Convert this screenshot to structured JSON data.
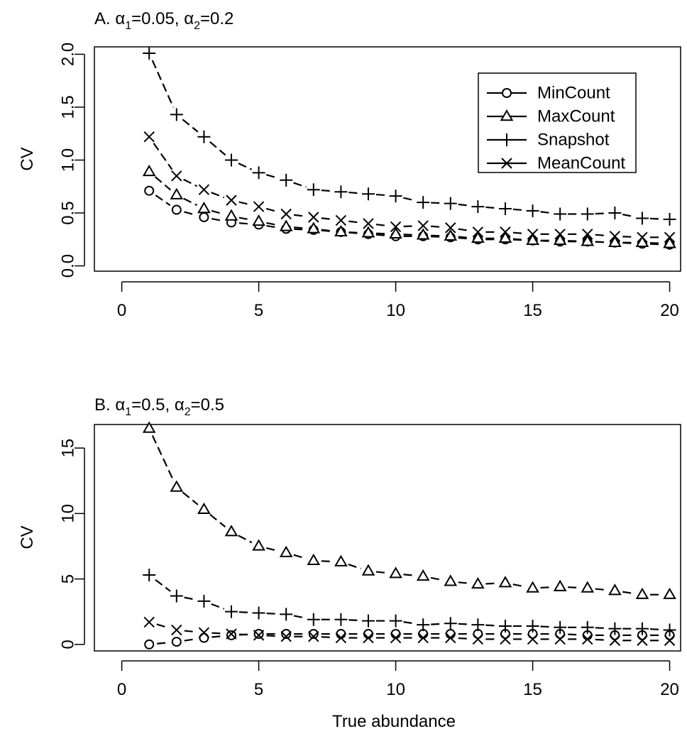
{
  "chart_data": [
    {
      "type": "line",
      "title": "A. α1=0.05, α2=0.2",
      "title_parts": {
        "prefix": "A. ",
        "a1_sym": "α",
        "a1_sub": "1",
        "a1_val": "=0.05, ",
        "a2_sym": "α",
        "a2_sub": "2",
        "a2_val": "=0.2"
      },
      "xlabel": "",
      "ylabel": "CV",
      "xlim": [
        -1,
        20.4
      ],
      "ylim": [
        -0.05,
        2.07
      ],
      "xticks": [
        0,
        5,
        10,
        15,
        20
      ],
      "xtick_labels": [
        "0",
        "5",
        "10",
        "15",
        "20"
      ],
      "yticks": [
        0,
        0.5,
        1,
        1.5,
        2
      ],
      "ytick_labels": [
        "0.0",
        "0.5",
        "1.0",
        "1.5",
        "2.0"
      ],
      "grid": false,
      "legend_position": "top-right",
      "x": [
        1,
        2,
        3,
        4,
        5,
        6,
        7,
        8,
        9,
        10,
        11,
        12,
        13,
        14,
        15,
        16,
        17,
        18,
        19,
        20
      ],
      "series": [
        {
          "name": "MinCount",
          "marker": "circle",
          "values": [
            0.71,
            0.53,
            0.46,
            0.41,
            0.39,
            0.35,
            0.34,
            0.32,
            0.3,
            0.28,
            0.28,
            0.27,
            0.25,
            0.25,
            0.24,
            0.23,
            0.23,
            0.22,
            0.21,
            0.2
          ]
        },
        {
          "name": "MaxCount",
          "marker": "triangle",
          "values": [
            0.89,
            0.67,
            0.54,
            0.47,
            0.42,
            0.37,
            0.35,
            0.32,
            0.31,
            0.3,
            0.29,
            0.28,
            0.26,
            0.26,
            0.24,
            0.24,
            0.23,
            0.22,
            0.22,
            0.21
          ]
        },
        {
          "name": "Snapshot",
          "marker": "plus",
          "values": [
            2.01,
            1.43,
            1.22,
            1.0,
            0.88,
            0.81,
            0.72,
            0.7,
            0.68,
            0.66,
            0.6,
            0.59,
            0.56,
            0.54,
            0.52,
            0.49,
            0.49,
            0.5,
            0.45,
            0.44
          ]
        },
        {
          "name": "MeanCount",
          "marker": "cross",
          "values": [
            1.22,
            0.85,
            0.72,
            0.62,
            0.56,
            0.49,
            0.46,
            0.43,
            0.4,
            0.37,
            0.38,
            0.36,
            0.32,
            0.32,
            0.3,
            0.3,
            0.3,
            0.28,
            0.27,
            0.27
          ]
        }
      ]
    },
    {
      "type": "line",
      "title": "B. α1=0.5, α2=0.5",
      "title_parts": {
        "prefix": "B. ",
        "a1_sym": "α",
        "a1_sub": "1",
        "a1_val": "=0.5, ",
        "a2_sym": "α",
        "a2_sub": "2",
        "a2_val": "=0.5"
      },
      "xlabel": "True abundance",
      "ylabel": "CV",
      "xlim": [
        -1,
        20.4
      ],
      "ylim": [
        -0.5,
        16.8
      ],
      "xticks": [
        0,
        5,
        10,
        15,
        20
      ],
      "xtick_labels": [
        "0",
        "5",
        "10",
        "15",
        "20"
      ],
      "yticks": [
        0,
        5,
        10,
        15
      ],
      "ytick_labels": [
        "0",
        "5",
        "10",
        "15"
      ],
      "grid": false,
      "x": [
        1,
        2,
        3,
        4,
        5,
        6,
        7,
        8,
        9,
        10,
        11,
        12,
        13,
        14,
        15,
        16,
        17,
        18,
        19,
        20
      ],
      "series": [
        {
          "name": "MinCount",
          "marker": "circle",
          "values": [
            0.0,
            0.2,
            0.5,
            0.7,
            0.8,
            0.8,
            0.8,
            0.8,
            0.8,
            0.8,
            0.8,
            0.8,
            0.8,
            0.8,
            0.8,
            0.8,
            0.7,
            0.7,
            0.7,
            0.7
          ]
        },
        {
          "name": "MaxCount",
          "marker": "triangle",
          "values": [
            16.5,
            12.0,
            10.3,
            8.6,
            7.5,
            7.0,
            6.4,
            6.3,
            5.6,
            5.4,
            5.2,
            4.8,
            4.6,
            4.7,
            4.3,
            4.4,
            4.3,
            4.1,
            3.8,
            3.8
          ]
        },
        {
          "name": "Snapshot",
          "marker": "plus",
          "values": [
            5.3,
            3.7,
            3.3,
            2.5,
            2.4,
            2.3,
            1.9,
            1.9,
            1.8,
            1.8,
            1.5,
            1.6,
            1.5,
            1.4,
            1.4,
            1.3,
            1.3,
            1.2,
            1.2,
            1.1
          ]
        },
        {
          "name": "MeanCount",
          "marker": "cross",
          "values": [
            1.7,
            1.1,
            0.9,
            0.8,
            0.7,
            0.6,
            0.6,
            0.5,
            0.5,
            0.5,
            0.5,
            0.5,
            0.4,
            0.4,
            0.4,
            0.4,
            0.4,
            0.3,
            0.3,
            0.3
          ]
        }
      ]
    }
  ]
}
